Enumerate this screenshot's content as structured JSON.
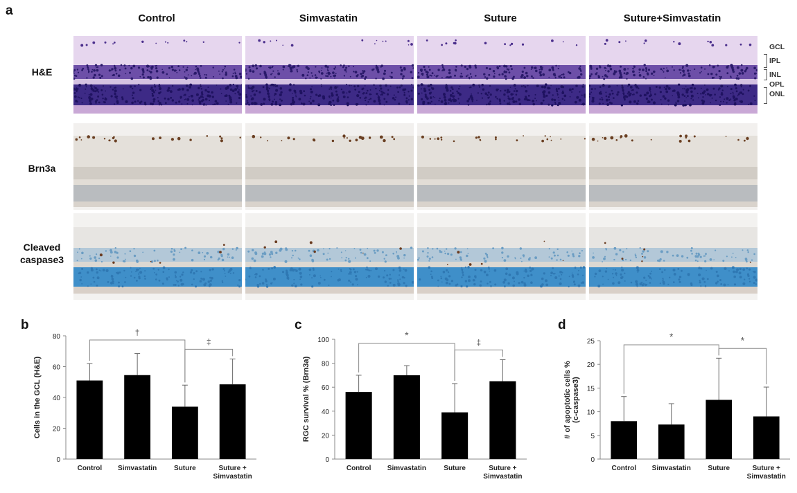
{
  "figure": {
    "panel_a": "a",
    "columns": [
      "Control",
      "Simvastatin",
      "Suture",
      "Suture+Simvastatin"
    ],
    "rows": [
      {
        "label_lines": [
          "H&E"
        ],
        "stain": "he"
      },
      {
        "label_lines": [
          "Brn3a"
        ],
        "stain": "brn3a"
      },
      {
        "label_lines": [
          "Cleaved",
          "caspase3"
        ],
        "stain": "casp"
      }
    ],
    "layer_labels": [
      "GCL",
      "IPL",
      "INL",
      "OPL",
      "ONL"
    ],
    "colors": {
      "bar": "#000000",
      "he_dark": "#3d2a86",
      "he_light": "#c9a8d6",
      "brn3a_bg": "#cfcac2",
      "casp_blue": "#3f8fc9"
    }
  },
  "chart_data": [
    {
      "panel": "b",
      "type": "bar",
      "categories": [
        [
          "Control"
        ],
        [
          "Simvastatin"
        ],
        [
          "Suture"
        ],
        [
          "Suture +",
          "Simvastatin"
        ]
      ],
      "values": [
        51,
        54.5,
        34,
        48.5
      ],
      "errors": [
        11,
        14,
        14,
        16.5
      ],
      "ylabel": "Cells in the GCL (H&E)",
      "ylim": [
        0,
        80
      ],
      "yticks": [
        "0",
        "20",
        "40",
        "60",
        "80"
      ],
      "significance": [
        {
          "from": 0,
          "to": 2,
          "symbol": "†"
        },
        {
          "from": 2,
          "to": 3,
          "symbol": "‡"
        }
      ]
    },
    {
      "panel": "c",
      "type": "bar",
      "categories": [
        [
          "Control"
        ],
        [
          "Simvastatin"
        ],
        [
          "Suture"
        ],
        [
          "Suture +",
          "Simvastatin"
        ]
      ],
      "values": [
        56,
        70,
        39,
        65
      ],
      "errors": [
        14,
        8,
        24,
        18
      ],
      "ylabel": "RGC survival % (Brn3a)",
      "ylim": [
        0,
        100
      ],
      "yticks": [
        "0",
        "20",
        "40",
        "60",
        "80",
        "100"
      ],
      "significance": [
        {
          "from": 0,
          "to": 2,
          "symbol": "*"
        },
        {
          "from": 2,
          "to": 3,
          "symbol": "‡"
        }
      ]
    },
    {
      "panel": "d",
      "type": "bar",
      "categories": [
        [
          "Control"
        ],
        [
          "Simvastatin"
        ],
        [
          "Suture"
        ],
        [
          "Suture +",
          "Simvastatin"
        ]
      ],
      "values": [
        8,
        7.3,
        12.5,
        9
      ],
      "errors": [
        5.2,
        4.4,
        8.8,
        6.2
      ],
      "ylabel": "# of apoptotic cells %\n(c-caspase3)",
      "ylabel_lines": [
        "# of apoptotic cells %",
        "(c-caspase3)"
      ],
      "ylim": [
        0,
        25
      ],
      "yticks": [
        "0",
        "5",
        "10",
        "15",
        "20",
        "25"
      ],
      "significance": [
        {
          "from": 0,
          "to": 2,
          "symbol": "*"
        },
        {
          "from": 2,
          "to": 3,
          "symbol": "*"
        }
      ]
    }
  ]
}
